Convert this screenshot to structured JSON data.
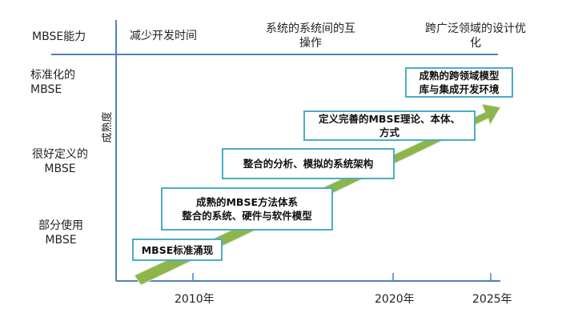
{
  "header": {
    "corner": "MBSE能力",
    "columns": [
      "减少开发时间",
      "系统的系统间的互操作",
      "跨广泛领域的设计优化"
    ]
  },
  "rows": [
    "标准化的MBSE",
    "很好定义的MBSE",
    "部分使用MBSE"
  ],
  "y_axis_label": "成熟度",
  "x_ticks": [
    "2010年",
    "2020年",
    "2025年"
  ],
  "milestones": [
    {
      "label": "MBSE标准涌现"
    },
    {
      "line1": "成熟的MBSE方法体系",
      "line2": "整合的系统、硬件与软件模型"
    },
    {
      "label": "整合的分析、模拟的系统架构"
    },
    {
      "line1": "定义完善的MBSE理论、本体、",
      "line2": "方式"
    },
    {
      "line1": "成熟的跨领域模型",
      "line2": "库与集成开发环境"
    }
  ],
  "colors": {
    "axis": "#4f81bd",
    "box_border": "#4bacc6",
    "arrow": "#8db54b"
  }
}
